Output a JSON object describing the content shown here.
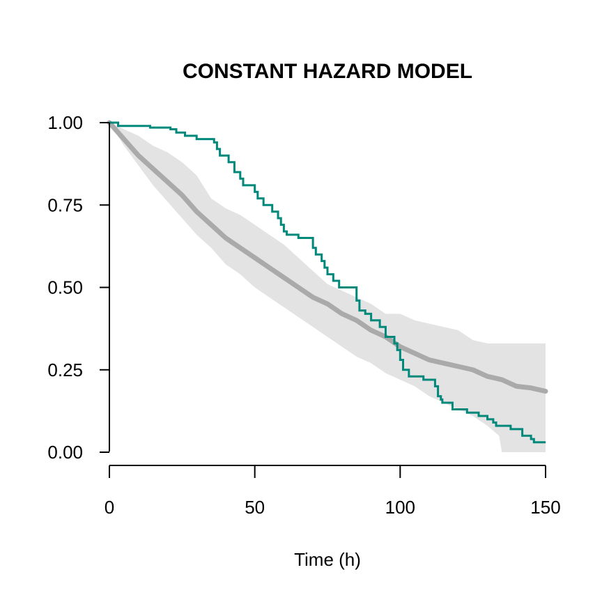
{
  "chart_data": {
    "type": "line",
    "title": "CONSTANT HAZARD MODEL",
    "xlabel": "Time (h)",
    "ylabel": "",
    "xlim": [
      0,
      150
    ],
    "ylim": [
      0,
      1
    ],
    "x_ticks": [
      0,
      50,
      100,
      150
    ],
    "x_tick_labels": [
      "0",
      "50",
      "100",
      "150"
    ],
    "y_ticks": [
      0,
      0.25,
      0.5,
      0.75,
      1
    ],
    "y_tick_labels": [
      "0.00",
      "0.25",
      "0.50",
      "0.75",
      "1.00"
    ],
    "grid": false,
    "legend": "none",
    "colors": {
      "observed": "#00897B",
      "model": "#AAAAAA",
      "band": "#E3E3E3",
      "axis": "#000000"
    },
    "series": [
      {
        "kind": "band",
        "lower": [
          [
            0,
            1.0
          ],
          [
            5,
            0.93
          ],
          [
            10,
            0.87
          ],
          [
            15,
            0.81
          ],
          [
            20,
            0.76
          ],
          [
            25,
            0.71
          ],
          [
            30,
            0.66
          ],
          [
            35,
            0.62
          ],
          [
            40,
            0.57
          ],
          [
            45,
            0.54
          ],
          [
            50,
            0.5
          ],
          [
            55,
            0.47
          ],
          [
            60,
            0.44
          ],
          [
            65,
            0.41
          ],
          [
            70,
            0.38
          ],
          [
            75,
            0.35
          ],
          [
            80,
            0.32
          ],
          [
            85,
            0.29
          ],
          [
            90,
            0.27
          ],
          [
            95,
            0.24
          ],
          [
            100,
            0.22
          ],
          [
            105,
            0.2
          ],
          [
            110,
            0.17
          ],
          [
            115,
            0.15
          ],
          [
            120,
            0.13
          ],
          [
            125,
            0.11
          ],
          [
            130,
            0.08
          ],
          [
            134,
            0.05
          ],
          [
            135,
            0.0
          ],
          [
            150,
            0.0
          ]
        ],
        "upper": [
          [
            0,
            1.0
          ],
          [
            5,
            0.98
          ],
          [
            10,
            0.96
          ],
          [
            15,
            0.93
          ],
          [
            20,
            0.91
          ],
          [
            25,
            0.88
          ],
          [
            30,
            0.84
          ],
          [
            35,
            0.77
          ],
          [
            40,
            0.74
          ],
          [
            45,
            0.72
          ],
          [
            50,
            0.69
          ],
          [
            55,
            0.66
          ],
          [
            60,
            0.63
          ],
          [
            65,
            0.59
          ],
          [
            70,
            0.55
          ],
          [
            75,
            0.51
          ],
          [
            80,
            0.49
          ],
          [
            85,
            0.47
          ],
          [
            90,
            0.45
          ],
          [
            95,
            0.42
          ],
          [
            100,
            0.42
          ],
          [
            105,
            0.4
          ],
          [
            110,
            0.39
          ],
          [
            115,
            0.38
          ],
          [
            120,
            0.37
          ],
          [
            125,
            0.34
          ],
          [
            130,
            0.33
          ],
          [
            140,
            0.33
          ],
          [
            150,
            0.33
          ]
        ]
      },
      {
        "kind": "line",
        "points": [
          [
            0,
            1.0
          ],
          [
            5,
            0.95
          ],
          [
            10,
            0.9
          ],
          [
            15,
            0.86
          ],
          [
            20,
            0.82
          ],
          [
            25,
            0.78
          ],
          [
            30,
            0.73
          ],
          [
            35,
            0.69
          ],
          [
            40,
            0.65
          ],
          [
            45,
            0.62
          ],
          [
            50,
            0.59
          ],
          [
            55,
            0.56
          ],
          [
            60,
            0.53
          ],
          [
            65,
            0.5
          ],
          [
            70,
            0.47
          ],
          [
            75,
            0.45
          ],
          [
            80,
            0.42
          ],
          [
            85,
            0.4
          ],
          [
            90,
            0.37
          ],
          [
            95,
            0.35
          ],
          [
            100,
            0.32
          ],
          [
            105,
            0.3
          ],
          [
            110,
            0.28
          ],
          [
            115,
            0.27
          ],
          [
            120,
            0.26
          ],
          [
            125,
            0.25
          ],
          [
            130,
            0.23
          ],
          [
            135,
            0.22
          ],
          [
            140,
            0.2
          ],
          [
            145,
            0.195
          ],
          [
            150,
            0.185
          ]
        ]
      },
      {
        "kind": "step",
        "points": [
          [
            0,
            1.0
          ],
          [
            3,
            0.99
          ],
          [
            14,
            0.985
          ],
          [
            21,
            0.98
          ],
          [
            23,
            0.97
          ],
          [
            26,
            0.96
          ],
          [
            30,
            0.95
          ],
          [
            36,
            0.94
          ],
          [
            37,
            0.92
          ],
          [
            38,
            0.9
          ],
          [
            41,
            0.88
          ],
          [
            43,
            0.85
          ],
          [
            45,
            0.83
          ],
          [
            46,
            0.81
          ],
          [
            50,
            0.79
          ],
          [
            51,
            0.77
          ],
          [
            53,
            0.75
          ],
          [
            56,
            0.73
          ],
          [
            58,
            0.71
          ],
          [
            59,
            0.69
          ],
          [
            60,
            0.67
          ],
          [
            61,
            0.66
          ],
          [
            65,
            0.65
          ],
          [
            70,
            0.62
          ],
          [
            71,
            0.6
          ],
          [
            73,
            0.58
          ],
          [
            74,
            0.56
          ],
          [
            75,
            0.54
          ],
          [
            77,
            0.52
          ],
          [
            79,
            0.5
          ],
          [
            85,
            0.46
          ],
          [
            86,
            0.43
          ],
          [
            88,
            0.42
          ],
          [
            90,
            0.4
          ],
          [
            93,
            0.38
          ],
          [
            95,
            0.35
          ],
          [
            98,
            0.33
          ],
          [
            99,
            0.31
          ],
          [
            100,
            0.28
          ],
          [
            101,
            0.25
          ],
          [
            103,
            0.23
          ],
          [
            108,
            0.22
          ],
          [
            112,
            0.2
          ],
          [
            113,
            0.17
          ],
          [
            114,
            0.16
          ],
          [
            114.5,
            0.15
          ],
          [
            118,
            0.13
          ],
          [
            123,
            0.12
          ],
          [
            127,
            0.11
          ],
          [
            130,
            0.1
          ],
          [
            132,
            0.09
          ],
          [
            133,
            0.08
          ],
          [
            138,
            0.07
          ],
          [
            142,
            0.05
          ],
          [
            145,
            0.04
          ],
          [
            146,
            0.03
          ],
          [
            150,
            0.03
          ]
        ]
      }
    ]
  }
}
